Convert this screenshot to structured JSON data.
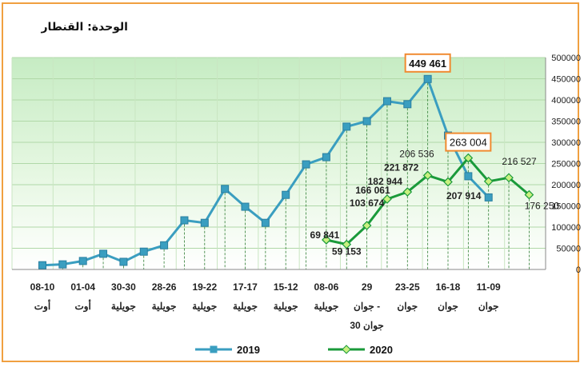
{
  "unit_label": "الوحدة: القنطار",
  "colors": {
    "s2019": "#3a9ec0",
    "s2020": "#1a9a3a",
    "highlight_box": "#f08a30"
  },
  "chart_data": {
    "type": "line",
    "title": "",
    "xlabel": "",
    "ylabel": "",
    "ylim": [
      0,
      500000
    ],
    "yticks": [
      "0",
      "50000",
      "100000",
      "150000",
      "200000",
      "250000",
      "300000",
      "350000",
      "400000",
      "450000",
      "500000"
    ],
    "grid": true,
    "legend_position": "bottom",
    "x_tick_labels": [
      [
        "08-10",
        "أوت"
      ],
      [
        "01-04",
        "أوت"
      ],
      [
        "30-30",
        "جويلية"
      ],
      [
        "28-26",
        "جويلية"
      ],
      [
        "19-22",
        "جويلية"
      ],
      [
        "17-17",
        "جويلية"
      ],
      [
        "15-12",
        "جويلية"
      ],
      [
        "08-06",
        "جويلية"
      ],
      [
        "29",
        "جوان -",
        "30 جوان"
      ],
      [
        "23-25",
        "جوان"
      ],
      [
        "16-18",
        "جوان"
      ],
      [
        "11-09",
        "جوان"
      ]
    ],
    "series": [
      {
        "name": "2019",
        "values": [
          10000,
          12000,
          20000,
          37000,
          18000,
          42000,
          57000,
          116000,
          110000,
          190000,
          148000,
          110000,
          176000,
          248000,
          265000,
          337000,
          350000,
          397000,
          390000,
          449461,
          316000,
          220000,
          170000
        ]
      },
      {
        "name": "2020",
        "values": [
          null,
          null,
          null,
          null,
          null,
          null,
          null,
          null,
          null,
          null,
          null,
          null,
          null,
          null,
          69841,
          59153,
          103674,
          166061,
          182944,
          221872,
          206536,
          263004,
          207914,
          216527,
          176250
        ]
      }
    ],
    "data_labels": [
      {
        "series": 1,
        "index": 14,
        "text": "69 841",
        "bold": true,
        "dx": -2,
        "dy": -2
      },
      {
        "series": 1,
        "index": 15,
        "text": "59 153",
        "bold": true,
        "dx": 0,
        "dy": 13
      },
      {
        "series": 1,
        "index": 16,
        "text": "103 674",
        "bold": true,
        "dx": 0,
        "dy": -24
      },
      {
        "series": 1,
        "index": 17,
        "text": "166 061",
        "bold": true,
        "dx": -18,
        "dy": -7
      },
      {
        "series": 1,
        "index": 18,
        "text": "182 944",
        "bold": true,
        "dx": -28,
        "dy": -9
      },
      {
        "series": 1,
        "index": 19,
        "text": "221 872",
        "bold": true,
        "dx": -33,
        "dy": -6
      },
      {
        "series": 1,
        "index": 20,
        "text": "206 536",
        "bold": false,
        "dx": -39,
        "dy": -31
      },
      {
        "series": 1,
        "index": 22,
        "text": "207 914",
        "bold": true,
        "dx": -31,
        "dy": 22
      },
      {
        "series": 1,
        "index": 23,
        "text": "216 527",
        "bold": false,
        "dx": 13,
        "dy": -16
      },
      {
        "series": 1,
        "index": 24,
        "text": "176 250",
        "bold": false,
        "dx": 16,
        "dy": 18
      }
    ],
    "callouts": [
      {
        "series": 0,
        "index": 19,
        "text": "449 461"
      },
      {
        "series": 1,
        "index": 21,
        "text": "263 004"
      }
    ]
  }
}
